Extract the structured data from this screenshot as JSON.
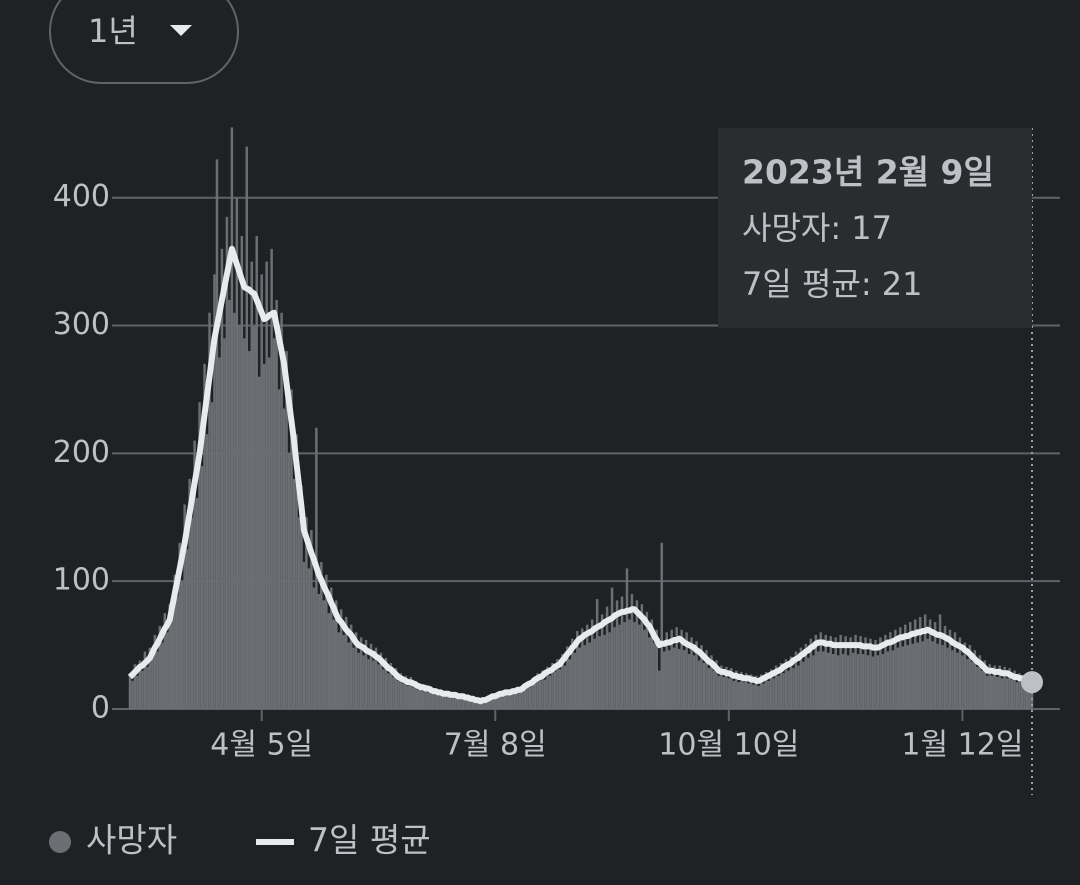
{
  "chart_data": {
    "type": "bar_line",
    "range_button": "1년",
    "xlim": [
      0,
      363
    ],
    "xticks": [
      {
        "value": 53,
        "label": "4월 5일"
      },
      {
        "value": 147,
        "label": "7월 8일"
      },
      {
        "value": 241,
        "label": "10월 10일"
      },
      {
        "value": 335,
        "label": "1월 12일"
      }
    ],
    "ylim": [
      0,
      460
    ],
    "yticks": [
      0,
      100,
      200,
      300,
      400
    ],
    "grid": true,
    "series": [
      {
        "name": "사망자",
        "type": "bar",
        "color": "#6b6e72",
        "values": [
          28,
          22,
          35,
          26,
          38,
          30,
          45,
          33,
          48,
          40,
          58,
          45,
          65,
          52,
          75,
          60,
          82,
          72,
          105,
          88,
          130,
          100,
          160,
          125,
          180,
          150,
          210,
          165,
          240,
          190,
          270,
          215,
          310,
          240,
          340,
          430,
          275,
          360,
          290,
          385,
          320,
          455,
          310,
          400,
          300,
          370,
          290,
          440,
          280,
          350,
          300,
          370,
          260,
          340,
          270,
          350,
          275,
          360,
          290,
          320,
          250,
          310,
          235,
          280,
          200,
          250,
          180,
          215,
          150,
          175,
          115,
          150,
          110,
          140,
          95,
          220,
          90,
          115,
          85,
          105,
          75,
          95,
          70,
          85,
          60,
          78,
          58,
          72,
          52,
          66,
          48,
          60,
          44,
          56,
          42,
          54,
          39,
          51,
          38,
          48,
          35,
          44,
          31,
          40,
          28,
          36,
          25,
          32,
          22,
          28,
          20,
          26,
          18,
          25,
          17,
          22,
          15,
          20,
          14,
          19,
          13,
          18,
          12,
          16,
          11,
          15,
          11,
          14,
          10,
          13,
          9,
          13,
          8,
          12,
          12,
          8,
          11,
          7,
          10,
          6,
          8,
          5,
          8,
          6,
          10,
          7,
          12,
          8,
          13,
          10,
          14,
          11,
          15,
          12,
          16,
          12,
          17,
          13,
          18,
          15,
          22,
          17,
          24,
          20,
          28,
          22,
          30,
          23,
          33,
          26,
          36,
          29,
          39,
          31,
          43,
          34,
          49,
          39,
          55,
          44,
          61,
          48,
          63,
          50,
          66,
          52,
          70,
          55,
          86,
          57,
          74,
          58,
          80,
          60,
          95,
          64,
          85,
          66,
          88,
          68,
          110,
          70,
          90,
          68,
          85,
          66,
          82,
          62,
          76,
          56,
          70,
          52,
          62,
          30,
          130,
          45,
          60,
          46,
          62,
          48,
          64,
          47,
          62,
          46,
          60,
          43,
          56,
          42,
          53,
          38,
          50,
          36,
          46,
          32,
          42,
          30,
          38,
          26,
          34,
          25,
          33,
          24,
          32,
          22,
          30,
          21,
          29,
          21,
          28,
          20,
          27,
          19,
          26,
          18,
          27,
          20,
          29,
          22,
          31,
          24,
          34,
          26,
          36,
          28,
          39,
          30,
          41,
          32,
          45,
          34,
          48,
          37,
          51,
          40,
          55,
          42,
          58,
          45,
          60,
          45,
          58,
          44,
          57,
          43,
          56,
          42,
          58,
          43,
          57,
          42,
          56,
          44,
          58,
          43,
          57,
          43,
          56,
          42,
          55,
          41,
          54,
          42,
          56,
          43,
          58,
          45,
          60,
          46,
          62,
          48,
          64,
          49,
          66,
          50,
          68,
          51,
          70,
          52,
          72,
          53,
          74,
          55,
          70,
          53,
          68,
          51,
          74,
          50,
          65,
          48,
          62,
          46,
          60,
          44,
          56,
          42,
          52,
          39,
          50,
          37,
          46,
          33,
          42,
          30,
          38,
          26,
          35,
          26,
          34,
          25,
          34,
          24,
          33,
          24,
          32,
          23,
          30,
          21,
          28,
          20,
          27,
          19,
          24,
          17
        ]
      },
      {
        "name": "7일 평균",
        "type": "line",
        "color": "#e8eaed",
        "values": [
          25,
          27,
          29,
          31,
          33,
          34,
          36,
          38,
          40,
          44,
          48,
          51,
          55,
          59,
          63,
          66,
          70,
          80,
          90,
          100,
          110,
          120,
          130,
          142,
          153,
          165,
          177,
          188,
          200,
          215,
          230,
          245,
          260,
          275,
          290,
          300,
          310,
          320,
          330,
          340,
          350,
          360,
          354,
          348,
          342,
          336,
          330,
          329,
          328,
          326,
          325,
          320,
          315,
          310,
          305,
          306,
          308,
          309,
          310,
          300,
          290,
          280,
          270,
          255,
          240,
          225,
          210,
          192,
          175,
          158,
          140,
          134,
          128,
          122,
          117,
          111,
          105,
          101,
          96,
          92,
          88,
          83,
          79,
          74,
          70,
          68,
          65,
          62,
          60,
          58,
          55,
          52,
          50,
          49,
          48,
          46,
          45,
          44,
          43,
          41,
          40,
          38,
          36,
          34,
          32,
          31,
          29,
          27,
          25,
          24,
          23,
          22,
          21,
          21,
          20,
          19,
          18,
          17,
          17,
          16,
          16,
          15,
          14,
          14,
          13,
          13,
          12,
          12,
          12,
          11,
          11,
          11,
          10,
          10,
          10,
          9,
          9,
          8,
          8,
          7,
          7,
          6,
          7,
          7,
          8,
          9,
          10,
          10,
          11,
          12,
          12,
          13,
          13,
          13,
          14,
          14,
          15,
          15,
          16,
          18,
          19,
          20,
          21,
          23,
          24,
          25,
          26,
          28,
          29,
          30,
          31,
          33,
          34,
          35,
          38,
          40,
          43,
          45,
          48,
          50,
          53,
          55,
          56,
          58,
          59,
          60,
          61,
          63,
          64,
          65,
          66,
          68,
          69,
          70,
          71,
          73,
          74,
          75,
          76,
          76,
          77,
          77,
          78,
          78,
          76,
          74,
          72,
          70,
          67,
          65,
          61,
          57,
          54,
          50,
          51,
          51,
          52,
          52,
          53,
          54,
          54,
          55,
          54,
          52,
          51,
          50,
          49,
          48,
          46,
          45,
          43,
          41,
          39,
          37,
          36,
          34,
          32,
          30,
          29,
          29,
          28,
          28,
          27,
          26,
          26,
          25,
          25,
          24,
          24,
          24,
          23,
          23,
          22,
          22,
          23,
          24,
          25,
          26,
          27,
          28,
          29,
          30,
          31,
          33,
          34,
          35,
          36,
          38,
          39,
          40,
          42,
          43,
          45,
          46,
          48,
          49,
          51,
          52,
          52,
          52,
          51,
          51,
          51,
          50,
          50,
          50,
          50,
          50,
          50,
          50,
          50,
          50,
          50,
          50,
          50,
          49,
          49,
          49,
          49,
          48,
          48,
          48,
          49,
          50,
          51,
          52,
          52,
          53,
          54,
          55,
          56,
          56,
          57,
          57,
          58,
          59,
          59,
          60,
          60,
          61,
          61,
          62,
          61,
          60,
          59,
          58,
          58,
          57,
          56,
          55,
          54,
          52,
          51,
          50,
          49,
          48,
          46,
          45,
          43,
          41,
          39,
          37,
          36,
          34,
          32,
          30,
          30,
          30,
          29,
          29,
          29,
          28,
          28,
          28,
          27,
          26,
          25,
          25,
          24,
          24,
          23,
          22,
          22,
          21
        ]
      }
    ],
    "tooltip": {
      "title": "2023년 2월 9일",
      "lines": [
        "사망자: 17",
        "7일 평균: 21"
      ]
    }
  }
}
